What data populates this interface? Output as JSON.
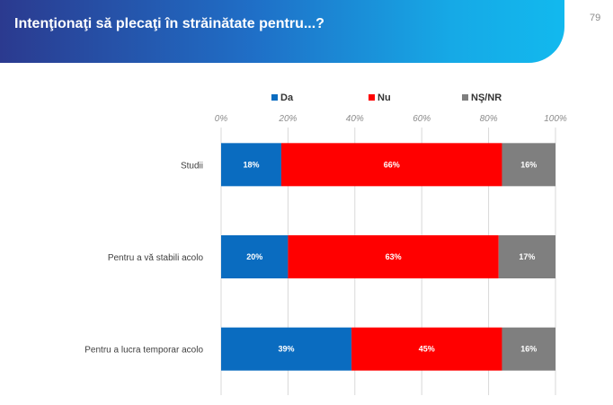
{
  "header": {
    "title": "Intenţionaţi să plecaţi în străinătate pentru...?",
    "page_number": "79"
  },
  "colors": {
    "Da": "#0a6cc0",
    "Nu": "#ff0000",
    "NS_NR": "#7f7f7f"
  },
  "chart_data": {
    "type": "bar",
    "orientation": "horizontal",
    "stacked": true,
    "percent_stacked": true,
    "title": "",
    "xlabel": "",
    "ylabel": "",
    "xlim": [
      0,
      100
    ],
    "x_ticks": [
      "0%",
      "20%",
      "40%",
      "60%",
      "80%",
      "100%"
    ],
    "grid": true,
    "legend_position": "top",
    "categories": [
      "Studii",
      "Pentru a vă stabili acolo",
      "Pentru a lucra temporar acolo"
    ],
    "series": [
      {
        "name": "Da",
        "color": "#0a6cc0",
        "values": [
          18,
          20,
          39
        ],
        "labels": [
          "18%",
          "20%",
          "39%"
        ]
      },
      {
        "name": "Nu",
        "color": "#ff0000",
        "values": [
          66,
          63,
          45
        ],
        "labels": [
          "66%",
          "63%",
          "45%"
        ]
      },
      {
        "name": "NŞ/NR",
        "color": "#7f7f7f",
        "values": [
          16,
          17,
          16
        ],
        "labels": [
          "16%",
          "17%",
          "16%"
        ]
      }
    ]
  }
}
